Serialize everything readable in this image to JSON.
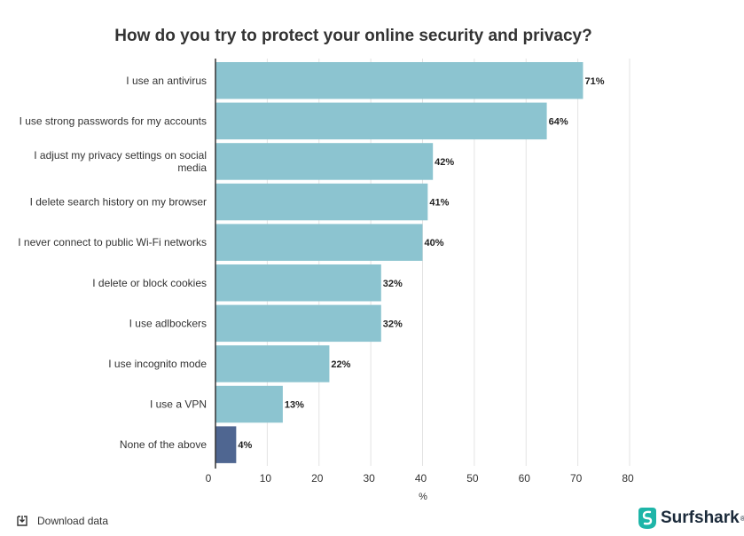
{
  "chart_data": {
    "type": "bar",
    "orientation": "horizontal",
    "title": "How do you try to protect your online security and privacy?",
    "xlabel": "%",
    "ylabel": "",
    "xlim": [
      0,
      80
    ],
    "xticks": [
      0,
      10,
      20,
      30,
      40,
      50,
      60,
      70,
      80
    ],
    "grid": true,
    "categories": [
      "I use an antivirus",
      "I use strong passwords for my accounts",
      "I adjust my privacy settings on social media",
      "I delete search history on my browser",
      "I never connect to public Wi-Fi networks",
      "I delete or block cookies",
      "I use adlbockers",
      "I use incognito mode",
      "I use a VPN",
      "None of the above"
    ],
    "category_lines": [
      [
        "I use an antivirus"
      ],
      [
        "I use strong passwords for my accounts"
      ],
      [
        "I adjust my privacy settings on social",
        "media"
      ],
      [
        "I delete search history on my browser"
      ],
      [
        "I never connect to public Wi-Fi networks"
      ],
      [
        "I delete or block cookies"
      ],
      [
        "I use adlbockers"
      ],
      [
        "I use incognito mode"
      ],
      [
        "I use a VPN"
      ],
      [
        "None of the above"
      ]
    ],
    "values": [
      71,
      64,
      42,
      41,
      40,
      32,
      32,
      22,
      13,
      4
    ],
    "value_labels": [
      "71%",
      "64%",
      "42%",
      "41%",
      "40%",
      "32%",
      "32%",
      "22%",
      "13%",
      "4%"
    ],
    "colors": {
      "default": "#8cc4d0",
      "highlight": "#4f6691",
      "grid": "#e3e3e3",
      "axis": "#333333"
    },
    "highlight_categories": [
      "None of the above"
    ]
  },
  "footer": {
    "download_label": "Download data",
    "download_icon": "download-icon",
    "brand_name": "Surfshark",
    "brand_mark": "®",
    "brand_icon": "surfshark-logo-icon",
    "brand_color": "#1b2a3a",
    "brand_accent": "#1eb5a8"
  }
}
